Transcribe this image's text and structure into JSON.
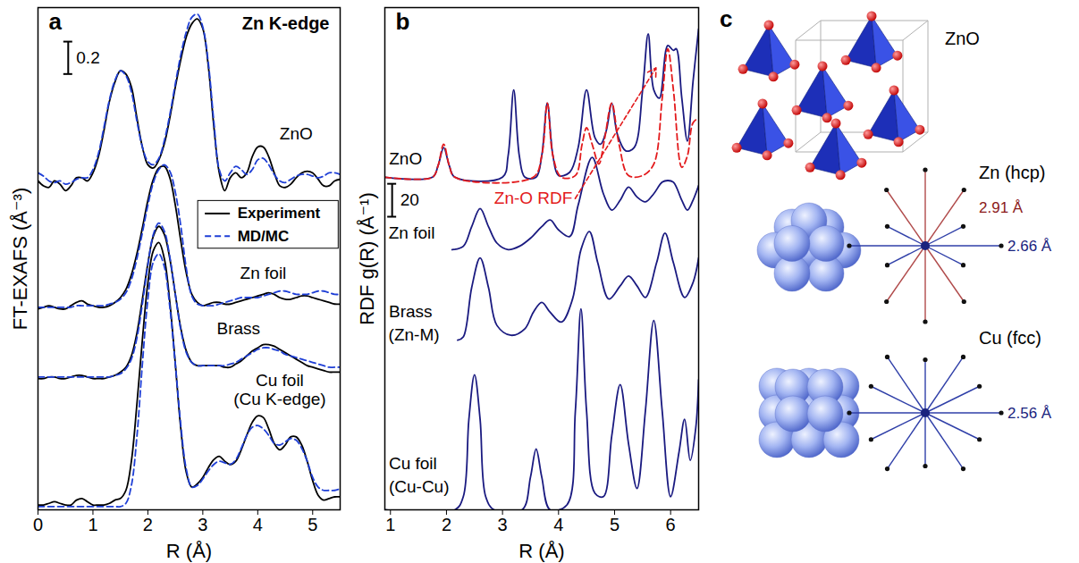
{
  "chart_data": [
    {
      "type": "line",
      "panel": "a",
      "title": "Zn K-edge",
      "xlabel": "R (Å)",
      "ylabel": "FT-EXAFS (Å⁻³)",
      "xlim": [
        0,
        5.5
      ],
      "xticks": [
        0,
        1,
        2,
        3,
        4,
        5
      ],
      "ylim": [
        0,
        3.1
      ],
      "tick_labels": "x",
      "legend": "right",
      "x": [
        0,
        0.1,
        0.2,
        0.3,
        0.4,
        0.5,
        0.6,
        0.7,
        0.8,
        0.9,
        1,
        1.1,
        1.2,
        1.3,
        1.4,
        1.5,
        1.6,
        1.7,
        1.8,
        1.9,
        2,
        2.1,
        2.2,
        2.3,
        2.4,
        2.5,
        2.6,
        2.7,
        2.8,
        2.9,
        3,
        3.1,
        3.2,
        3.3,
        3.4,
        3.5,
        3.6,
        3.7,
        3.8,
        3.9,
        4,
        4.1,
        4.2,
        4.3,
        4.4,
        4.5,
        4.6,
        4.7,
        4.8,
        4.9,
        5,
        5.1,
        5.2,
        5.3,
        5.4,
        5.5
      ],
      "series": [
        {
          "name": "Experiment",
          "color": "#000000",
          "line_style": "solid",
          "values": [
            2.03,
            2.0,
            1.99,
            2.03,
            2.01,
            1.97,
            2.0,
            2.05,
            2.05,
            2.03,
            2.08,
            2.18,
            2.34,
            2.52,
            2.64,
            2.71,
            2.69,
            2.61,
            2.42,
            2.24,
            2.13,
            2.11,
            2.16,
            2.26,
            2.42,
            2.61,
            2.78,
            2.92,
            3.0,
            3.03,
            2.97,
            2.74,
            2.37,
            2.08,
            1.97,
            2.05,
            2.08,
            2.05,
            2.08,
            2.18,
            2.24,
            2.24,
            2.18,
            2.08,
            2.0,
            1.99,
            2.01,
            2.05,
            2.08,
            2.09,
            2.08,
            2.04,
            2.0,
            2.0,
            2.03,
            2.04
          ]
        },
        {
          "name": "MD/MC",
          "color": "#1f3fd6",
          "line_style": "dashed",
          "values": [
            2.08,
            2.06,
            2.03,
            2.02,
            2.03,
            2.01,
            2.02,
            2.04,
            2.05,
            2.05,
            2.1,
            2.2,
            2.36,
            2.53,
            2.65,
            2.71,
            2.68,
            2.58,
            2.4,
            2.24,
            2.15,
            2.13,
            2.17,
            2.28,
            2.44,
            2.63,
            2.81,
            2.95,
            3.04,
            3.06,
            2.98,
            2.76,
            2.4,
            2.1,
            2.03,
            2.08,
            2.12,
            2.1,
            2.07,
            2.1,
            2.16,
            2.17,
            2.13,
            2.07,
            2.03,
            2.02,
            2.04,
            2.06,
            2.07,
            2.07,
            2.06,
            2.05,
            2.06,
            2.08,
            2.08,
            2.07
          ]
        },
        {
          "name": "Experiment",
          "color": "#000000",
          "line_style": "solid",
          "values": [
            1.24,
            1.25,
            1.26,
            1.25,
            1.24,
            1.24,
            1.26,
            1.28,
            1.29,
            1.27,
            1.26,
            1.25,
            1.25,
            1.26,
            1.28,
            1.31,
            1.36,
            1.45,
            1.58,
            1.74,
            1.91,
            2.04,
            2.11,
            2.12,
            2.05,
            1.88,
            1.66,
            1.46,
            1.33,
            1.28,
            1.26,
            1.27,
            1.28,
            1.28,
            1.27,
            1.27,
            1.28,
            1.29,
            1.3,
            1.31,
            1.32,
            1.33,
            1.34,
            1.33,
            1.31,
            1.3,
            1.3,
            1.31,
            1.32,
            1.32,
            1.31,
            1.3,
            1.29,
            1.28,
            1.27,
            1.27
          ]
        },
        {
          "name": "MD/MC",
          "color": "#1f3fd6",
          "line_style": "dashed",
          "values": [
            1.25,
            1.25,
            1.25,
            1.25,
            1.25,
            1.25,
            1.25,
            1.26,
            1.26,
            1.26,
            1.26,
            1.26,
            1.26,
            1.27,
            1.28,
            1.3,
            1.34,
            1.42,
            1.55,
            1.71,
            1.88,
            2.02,
            2.1,
            2.13,
            2.09,
            1.96,
            1.75,
            1.49,
            1.32,
            1.27,
            1.26,
            1.26,
            1.26,
            1.27,
            1.28,
            1.29,
            1.3,
            1.31,
            1.31,
            1.31,
            1.31,
            1.32,
            1.33,
            1.34,
            1.35,
            1.35,
            1.34,
            1.33,
            1.33,
            1.33,
            1.34,
            1.35,
            1.35,
            1.34,
            1.33,
            1.33
          ]
        },
        {
          "name": "Experiment",
          "color": "#000000",
          "line_style": "solid",
          "values": [
            0.81,
            0.81,
            0.82,
            0.82,
            0.81,
            0.81,
            0.82,
            0.83,
            0.83,
            0.82,
            0.81,
            0.81,
            0.81,
            0.82,
            0.83,
            0.85,
            0.88,
            0.95,
            1.09,
            1.3,
            1.52,
            1.69,
            1.75,
            1.7,
            1.55,
            1.33,
            1.12,
            0.98,
            0.91,
            0.89,
            0.89,
            0.89,
            0.89,
            0.89,
            0.88,
            0.88,
            0.9,
            0.92,
            0.95,
            0.98,
            1.0,
            1.02,
            1.02,
            1.01,
            0.99,
            0.97,
            0.95,
            0.93,
            0.91,
            0.89,
            0.88,
            0.87,
            0.86,
            0.85,
            0.85,
            0.85
          ]
        },
        {
          "name": "MD/MC",
          "color": "#1f3fd6",
          "line_style": "dashed",
          "values": [
            0.82,
            0.82,
            0.82,
            0.82,
            0.82,
            0.82,
            0.82,
            0.82,
            0.82,
            0.82,
            0.82,
            0.82,
            0.82,
            0.82,
            0.83,
            0.84,
            0.87,
            0.93,
            1.06,
            1.27,
            1.51,
            1.7,
            1.77,
            1.72,
            1.56,
            1.33,
            1.11,
            0.97,
            0.91,
            0.89,
            0.89,
            0.89,
            0.89,
            0.89,
            0.89,
            0.9,
            0.91,
            0.93,
            0.95,
            0.97,
            0.99,
            1.0,
            1.0,
            0.99,
            0.98,
            0.96,
            0.95,
            0.94,
            0.93,
            0.92,
            0.91,
            0.9,
            0.89,
            0.88,
            0.88,
            0.88
          ]
        },
        {
          "name": "Experiment",
          "color": "#000000",
          "line_style": "solid",
          "values": [
            0.03,
            0.03,
            0.04,
            0.05,
            0.04,
            0.03,
            0.03,
            0.06,
            0.07,
            0.05,
            0.03,
            0.03,
            0.03,
            0.04,
            0.06,
            0.07,
            0.12,
            0.3,
            0.65,
            1.05,
            1.4,
            1.6,
            1.65,
            1.55,
            1.28,
            0.9,
            0.5,
            0.23,
            0.14,
            0.16,
            0.2,
            0.26,
            0.31,
            0.33,
            0.3,
            0.28,
            0.3,
            0.37,
            0.46,
            0.54,
            0.58,
            0.57,
            0.5,
            0.41,
            0.37,
            0.4,
            0.45,
            0.45,
            0.4,
            0.3,
            0.18,
            0.09,
            0.06,
            0.07,
            0.08,
            0.08
          ]
        },
        {
          "name": "MD/MC",
          "color": "#1f3fd6",
          "line_style": "dashed",
          "values": [
            0.02,
            0.02,
            0.02,
            0.02,
            0.02,
            0.02,
            0.02,
            0.02,
            0.02,
            0.02,
            0.02,
            0.02,
            0.02,
            0.02,
            0.02,
            0.02,
            0.04,
            0.15,
            0.45,
            0.9,
            1.3,
            1.53,
            1.58,
            1.5,
            1.25,
            0.9,
            0.52,
            0.25,
            0.14,
            0.15,
            0.19,
            0.24,
            0.28,
            0.3,
            0.29,
            0.28,
            0.31,
            0.38,
            0.46,
            0.51,
            0.52,
            0.5,
            0.46,
            0.41,
            0.4,
            0.42,
            0.44,
            0.43,
            0.38,
            0.3,
            0.2,
            0.14,
            0.12,
            0.12,
            0.12,
            0.13
          ]
        }
      ],
      "annotations": [
        {
          "text": "ZnO",
          "x": 4.7,
          "y": 2.32
        },
        {
          "text": "Zn foil",
          "x": 4.1,
          "y": 1.46
        },
        {
          "text": "Brass",
          "x": 3.65,
          "y": 1.12
        },
        {
          "text": "Cu foil",
          "x": 4.4,
          "y": 0.8
        },
        {
          "text": "(Cu K-edge)",
          "x": 4.4,
          "y": 0.68
        }
      ],
      "scale_bar": {
        "value": 0.2,
        "x": 0.55,
        "y": 2.69
      }
    },
    {
      "type": "line",
      "panel": "b",
      "xlabel": "R (Å)",
      "ylabel": "RDF g(R) (Å⁻¹)",
      "xlim": [
        0.9,
        6.5
      ],
      "xticks": [
        1,
        2,
        3,
        4,
        5,
        6
      ],
      "ylim": [
        0,
        305
      ],
      "tick_labels": "x",
      "series": [
        {
          "name": "ZnO",
          "color": "#1a1a80",
          "line_style": "solid",
          "x": [
            0.9,
            1.75,
            1.85,
            1.95,
            2.05,
            2.15,
            3.0,
            3.1,
            3.2,
            3.3,
            3.4,
            3.6,
            3.7,
            3.8,
            3.9,
            4.0,
            4.2,
            4.35,
            4.5,
            4.65,
            4.75,
            4.85,
            4.95,
            5.05,
            5.2,
            5.35,
            5.5,
            5.6,
            5.7,
            5.8,
            5.95,
            6.05,
            6.1,
            6.2,
            6.3,
            6.4,
            6.5
          ],
          "values": [
            202,
            202,
            209,
            220,
            209,
            202,
            202,
            215,
            255,
            215,
            202,
            202,
            215,
            247,
            215,
            203,
            205,
            220,
            255,
            226,
            222,
            230,
            247,
            228,
            218,
            220,
            255,
            289,
            255,
            250,
            282,
            279,
            280,
            250,
            224,
            260,
            292
          ]
        },
        {
          "name": "Zn-O RDF",
          "color": "#e31a1c",
          "line_style": "dashed",
          "x": [
            0.9,
            1.75,
            1.85,
            1.95,
            2.05,
            2.15,
            3.55,
            3.7,
            3.8,
            3.9,
            4.05,
            4.3,
            4.42,
            4.5,
            4.6,
            4.72,
            4.82,
            4.95,
            5.08,
            5.25,
            5.5,
            5.7,
            5.85,
            5.95,
            6.05,
            6.2,
            6.3,
            6.4,
            6.5
          ],
          "values": [
            202,
            202,
            209,
            222,
            209,
            202,
            202,
            215,
            247,
            215,
            202,
            203,
            222,
            232,
            222,
            210,
            225,
            247,
            222,
            203,
            203,
            210,
            250,
            280,
            255,
            208,
            215,
            235,
            238
          ]
        },
        {
          "name": "Zn foil",
          "color": "#1a1a80",
          "line_style": "solid",
          "x": [
            2.1,
            2.3,
            2.45,
            2.6,
            2.75,
            2.9,
            3.1,
            3.3,
            3.5,
            3.7,
            3.85,
            4.0,
            4.2,
            4.35,
            4.6,
            4.8,
            4.95,
            5.1,
            5.25,
            5.4,
            5.55,
            5.7,
            5.85,
            5.95,
            6.05,
            6.2,
            6.3,
            6.4,
            6.5
          ],
          "values": [
            158,
            160,
            172,
            183,
            172,
            162,
            158,
            160,
            165,
            172,
            176,
            170,
            166,
            185,
            214,
            192,
            182,
            188,
            196,
            190,
            187,
            192,
            199,
            200,
            199,
            188,
            182,
            188,
            197
          ]
        },
        {
          "name": "Brass",
          "color": "#1a1a80",
          "line_style": "solid",
          "x": [
            2.2,
            2.3,
            2.45,
            2.6,
            2.75,
            2.9,
            3.15,
            3.4,
            3.55,
            3.7,
            3.85,
            4.05,
            4.25,
            4.4,
            4.55,
            4.7,
            4.9,
            5.1,
            5.25,
            5.4,
            5.55,
            5.75,
            5.9,
            6.05,
            6.25,
            6.4,
            6.5
          ],
          "values": [
            103,
            105,
            135,
            153,
            135,
            112,
            106,
            110,
            120,
            126,
            120,
            114,
            128,
            158,
            169,
            150,
            128,
            136,
            142,
            136,
            129,
            150,
            168,
            150,
            129,
            138,
            153
          ]
        },
        {
          "name": "Cu foil",
          "color": "#1a1a80",
          "line_style": "solid",
          "x": [
            0.9,
            2.15,
            2.3,
            2.4,
            2.5,
            2.6,
            2.7,
            2.85,
            3.35,
            3.5,
            3.6,
            3.7,
            3.85,
            4.15,
            4.3,
            4.4,
            4.5,
            4.65,
            4.8,
            4.95,
            5.1,
            5.25,
            5.4,
            5.55,
            5.7,
            5.85,
            6.0,
            6.15,
            6.25,
            6.35,
            6.45,
            6.5
          ],
          "values": [
            0,
            0,
            8,
            55,
            82,
            55,
            8,
            0,
            0,
            20,
            37,
            20,
            0,
            3,
            60,
            122,
            60,
            10,
            8,
            45,
            76,
            40,
            13,
            60,
            115,
            60,
            8,
            35,
            55,
            30,
            50,
            79
          ]
        }
      ],
      "annotations": [
        {
          "text": "ZnO",
          "x": 1.27,
          "y": 213
        },
        {
          "text": "Zn foil",
          "x": 1.38,
          "y": 168
        },
        {
          "text": "Brass",
          "x": 1.36,
          "y": 120
        },
        {
          "text": "(Zn-M)",
          "x": 1.42,
          "y": 106
        },
        {
          "text": "Cu foil",
          "x": 1.4,
          "y": 28
        },
        {
          "text": "(Cu-Cu)",
          "x": 1.51,
          "y": 14
        },
        {
          "text": "Zn-O RDF",
          "x": 3.55,
          "y": 189,
          "color": "#e31a1c",
          "points_to": "Zn-O RDF"
        }
      ],
      "scale_bar": {
        "value": 20,
        "x": 1.03,
        "y": 178
      }
    }
  ],
  "diagram": {
    "label": "c",
    "structures": [
      {
        "name": "ZnO"
      },
      {
        "name": "Zn (hcp)",
        "distances": [
          "2.91 Å",
          "2.66 Å"
        ]
      },
      {
        "name": "Cu (fcc)",
        "distances": [
          "2.56 Å"
        ]
      }
    ]
  }
}
